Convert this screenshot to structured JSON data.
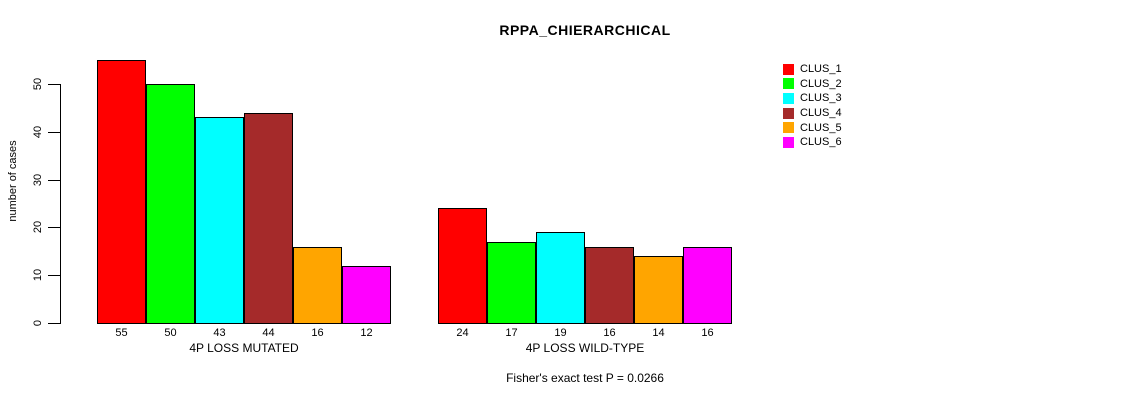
{
  "chart_data": {
    "type": "bar",
    "title": "RPPA_CHIERARCHICAL",
    "ylabel": "number of cases",
    "yticks": [
      0,
      10,
      20,
      30,
      40,
      50
    ],
    "ylim": [
      0,
      55
    ],
    "grid": false,
    "legend_position": "right",
    "categories": [
      "4P LOSS MUTATED",
      "4P LOSS WILD-TYPE"
    ],
    "series": [
      {
        "name": "CLUS_1",
        "color": "#FF0000",
        "values": [
          55,
          24
        ]
      },
      {
        "name": "CLUS_2",
        "color": "#00FF00",
        "values": [
          50,
          17
        ]
      },
      {
        "name": "CLUS_3",
        "color": "#00FFFF",
        "values": [
          43,
          19
        ]
      },
      {
        "name": "CLUS_4",
        "color": "#A52A2A",
        "values": [
          44,
          16
        ]
      },
      {
        "name": "CLUS_5",
        "color": "#FFA500",
        "values": [
          16,
          14
        ]
      },
      {
        "name": "CLUS_6",
        "color": "#FF00FF",
        "values": [
          12,
          16
        ]
      }
    ],
    "footer": "Fisher's exact test P = 0.0266"
  }
}
